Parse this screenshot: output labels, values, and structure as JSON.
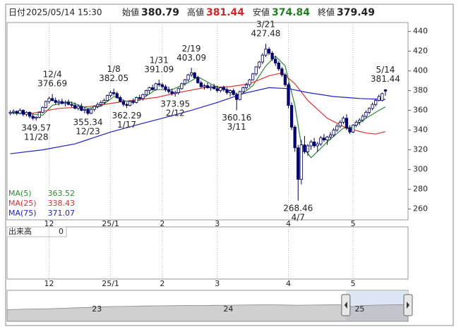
{
  "header": {
    "date_label": "日付",
    "date": "2025/05/14 15:30",
    "open_label": "始値",
    "open": 380.79,
    "high_label": "高値",
    "high": 381.44,
    "low_label": "安値",
    "low": 374.84,
    "close_label": "終値",
    "close": 379.49
  },
  "chart_data": {
    "type": "candlestick",
    "up_color": "#ffffff",
    "down_color": "#000080",
    "grid": true,
    "xlim": [
      -1,
      123
    ],
    "ylim": [
      249,
      449
    ],
    "yticks": [
      260,
      280,
      300,
      320,
      340,
      360,
      380,
      400,
      420,
      440
    ],
    "xticks": [
      {
        "value": 12,
        "label": "12"
      },
      {
        "value": 31,
        "label": "25/1"
      },
      {
        "value": 47,
        "label": "2"
      },
      {
        "value": 64,
        "label": "3"
      },
      {
        "value": 86,
        "label": "4"
      },
      {
        "value": 106,
        "label": "5"
      }
    ],
    "candles": [
      [
        357,
        360,
        355,
        358
      ],
      [
        358,
        361,
        356,
        359
      ],
      [
        359,
        360,
        355,
        357
      ],
      [
        357,
        362,
        356,
        360
      ],
      [
        360,
        361,
        354,
        356
      ],
      [
        356,
        359,
        354,
        358
      ],
      [
        358,
        359,
        352,
        354
      ],
      [
        354,
        356,
        350,
        352
      ],
      [
        352,
        354,
        349.57,
        353
      ],
      [
        353,
        359,
        352,
        358
      ],
      [
        358,
        364,
        357,
        363
      ],
      [
        363,
        370,
        362,
        369
      ],
      [
        369,
        374,
        367,
        372
      ],
      [
        372,
        376.69,
        369,
        370
      ],
      [
        370,
        373,
        366,
        368
      ],
      [
        368,
        371,
        365,
        369
      ],
      [
        369,
        372,
        366,
        367
      ],
      [
        367,
        370,
        364,
        368
      ],
      [
        368,
        371,
        365,
        366
      ],
      [
        366,
        369,
        363,
        365
      ],
      [
        365,
        368,
        361,
        362
      ],
      [
        362,
        366,
        360,
        364
      ],
      [
        364,
        367,
        359,
        360
      ],
      [
        360,
        363,
        357,
        361
      ],
      [
        361,
        362,
        355.34,
        357
      ],
      [
        357,
        362,
        356,
        361
      ],
      [
        361,
        365,
        359,
        364
      ],
      [
        364,
        368,
        362,
        366
      ],
      [
        366,
        370,
        364,
        368
      ],
      [
        368,
        372,
        366,
        370
      ],
      [
        370,
        376,
        369,
        375
      ],
      [
        375,
        380,
        373,
        378
      ],
      [
        378,
        382.05,
        375,
        377
      ],
      [
        377,
        379,
        372,
        373
      ],
      [
        373,
        375,
        368,
        369
      ],
      [
        369,
        371,
        364,
        366
      ],
      [
        366,
        368,
        362.29,
        365
      ],
      [
        365,
        370,
        364,
        369
      ],
      [
        369,
        372,
        366,
        368
      ],
      [
        368,
        374,
        367,
        373
      ],
      [
        373,
        376,
        371,
        372
      ],
      [
        372,
        377,
        370,
        376
      ],
      [
        376,
        381,
        374,
        380
      ],
      [
        380,
        384,
        377,
        383
      ],
      [
        383,
        386,
        380,
        381
      ],
      [
        381,
        388,
        380,
        387
      ],
      [
        387,
        391.09,
        384,
        386
      ],
      [
        386,
        388,
        382,
        384
      ],
      [
        384,
        386,
        379,
        381
      ],
      [
        381,
        384,
        377,
        379
      ],
      [
        379,
        382,
        375,
        377
      ],
      [
        377,
        380,
        373.95,
        378
      ],
      [
        378,
        383,
        376,
        382
      ],
      [
        382,
        388,
        381,
        387
      ],
      [
        387,
        392,
        385,
        391
      ],
      [
        391,
        397,
        389,
        396
      ],
      [
        396,
        403.09,
        394,
        398
      ],
      [
        398,
        399,
        392,
        393
      ],
      [
        393,
        395,
        387,
        388
      ],
      [
        388,
        390,
        383,
        384
      ],
      [
        384,
        387,
        381,
        385
      ],
      [
        385,
        388,
        382,
        383
      ],
      [
        383,
        386,
        380,
        384
      ],
      [
        384,
        387,
        381,
        382
      ],
      [
        382,
        385,
        378,
        380
      ],
      [
        380,
        384,
        378,
        383
      ],
      [
        383,
        385,
        379,
        381
      ],
      [
        381,
        383,
        376,
        378
      ],
      [
        378,
        381,
        374,
        380
      ],
      [
        380,
        382,
        375,
        376
      ],
      [
        376,
        378,
        360.16,
        371
      ],
      [
        371,
        380,
        370,
        379
      ],
      [
        379,
        384,
        377,
        383
      ],
      [
        383,
        388,
        381,
        386
      ],
      [
        386,
        392,
        384,
        391
      ],
      [
        391,
        398,
        390,
        397
      ],
      [
        397,
        405,
        395,
        404
      ],
      [
        404,
        410,
        402,
        409
      ],
      [
        409,
        418,
        407,
        416
      ],
      [
        416,
        427.48,
        414,
        422
      ],
      [
        422,
        424,
        416,
        418
      ],
      [
        418,
        420,
        410,
        412
      ],
      [
        412,
        415,
        405,
        408
      ],
      [
        408,
        410,
        400,
        402
      ],
      [
        402,
        404,
        394,
        396
      ],
      [
        396,
        398,
        384,
        386
      ],
      [
        386,
        388,
        362,
        365
      ],
      [
        365,
        368,
        340,
        343
      ],
      [
        343,
        345,
        318,
        322
      ],
      [
        322,
        325,
        268.46,
        290
      ],
      [
        290,
        330,
        285,
        325
      ],
      [
        325,
        334,
        316,
        318
      ],
      [
        318,
        326,
        314,
        324
      ],
      [
        324,
        330,
        320,
        328
      ],
      [
        328,
        332,
        322,
        324
      ],
      [
        324,
        328,
        318,
        326
      ],
      [
        326,
        334,
        324,
        332
      ],
      [
        332,
        336,
        328,
        330
      ],
      [
        330,
        334,
        325,
        333
      ],
      [
        333,
        338,
        330,
        335
      ],
      [
        335,
        342,
        333,
        340
      ],
      [
        340,
        346,
        338,
        344
      ],
      [
        344,
        350,
        342,
        348
      ],
      [
        348,
        354,
        346,
        352
      ],
      [
        352,
        356,
        340,
        342
      ],
      [
        342,
        345,
        336,
        338
      ],
      [
        338,
        346,
        337,
        345
      ],
      [
        345,
        350,
        343,
        348
      ],
      [
        348,
        352,
        345,
        350
      ],
      [
        350,
        356,
        348,
        354
      ],
      [
        354,
        360,
        352,
        358
      ],
      [
        358,
        363,
        356,
        362
      ],
      [
        362,
        368,
        360,
        366
      ],
      [
        366,
        372,
        364,
        370
      ],
      [
        370,
        376,
        369,
        374
      ],
      [
        370,
        378,
        369,
        377
      ],
      [
        380.79,
        381.44,
        374.84,
        379.49
      ]
    ],
    "ma": [
      {
        "name": "MA(5)",
        "color": "#2e8b2e",
        "x": [
          0,
          5,
          10,
          13,
          18,
          24,
          28,
          32,
          36,
          40,
          45,
          50,
          55,
          58,
          63,
          68,
          71,
          75,
          79,
          82,
          85,
          88,
          90,
          93,
          98,
          103,
          106,
          110,
          114,
          116
        ],
        "values": [
          357,
          357,
          355,
          365,
          369,
          362,
          364,
          374,
          369,
          370,
          381,
          381,
          388,
          394,
          385,
          380,
          375,
          385,
          405,
          415,
          405,
          365,
          325,
          312,
          328,
          342,
          343,
          352,
          360,
          363.52
        ]
      },
      {
        "name": "MA(25)",
        "color": "#e03030",
        "x": [
          5,
          15,
          25,
          35,
          45,
          52,
          60,
          68,
          74,
          80,
          84,
          88,
          92,
          98,
          104,
          110,
          113,
          116
        ],
        "values": [
          356,
          362,
          364,
          369,
          373,
          378,
          383,
          384,
          387,
          395,
          398,
          387,
          370,
          352,
          342,
          337,
          336,
          338.43
        ]
      },
      {
        "name": "MA(75)",
        "color": "#2020d0",
        "x": [
          0,
          10,
          20,
          31,
          40,
          47,
          56,
          64,
          72,
          80,
          86,
          92,
          100,
          108,
          116
        ],
        "values": [
          316,
          320,
          326,
          338,
          346,
          352,
          360,
          368,
          377,
          383,
          382,
          378,
          374,
          372,
          371.07
        ]
      }
    ],
    "annotations": [
      {
        "date": "11/28",
        "value": 349.57,
        "x": 8,
        "pos": "below"
      },
      {
        "date": "12/4",
        "value": 376.69,
        "x": 13,
        "pos": "above"
      },
      {
        "date": "12/23",
        "value": 355.34,
        "x": 24,
        "pos": "below"
      },
      {
        "date": "1/8",
        "value": 382.05,
        "x": 32,
        "pos": "above"
      },
      {
        "date": "1/17",
        "value": 362.29,
        "x": 36,
        "pos": "below"
      },
      {
        "date": "1/31",
        "value": 391.09,
        "x": 46,
        "pos": "above"
      },
      {
        "date": "2/12",
        "value": 373.95,
        "x": 51,
        "pos": "below"
      },
      {
        "date": "2/19",
        "value": 403.09,
        "x": 56,
        "pos": "above"
      },
      {
        "date": "3/11",
        "value": 360.16,
        "x": 70,
        "pos": "below"
      },
      {
        "date": "3/21",
        "value": 427.48,
        "x": 79,
        "pos": "above"
      },
      {
        "date": "4/7",
        "value": 268.46,
        "x": 89,
        "pos": "below"
      },
      {
        "date": "5/14",
        "value": 381.44,
        "x": 116,
        "pos": "above"
      }
    ],
    "volume": {
      "label": "出来高",
      "value": 0
    },
    "navigator": {
      "xlim": [
        0,
        29
      ],
      "ylim": [
        0,
        400
      ],
      "color": "#b0b0b0",
      "values": [
        150,
        155,
        160,
        162,
        168,
        175,
        180,
        188,
        192,
        195,
        198,
        200,
        202,
        205,
        203,
        206,
        208,
        210,
        212,
        214,
        211,
        208,
        210,
        212,
        215,
        190,
        205,
        210,
        214,
        215
      ],
      "xticks": [
        {
          "value": 6.5,
          "label": "23"
        },
        {
          "value": 16,
          "label": "24"
        },
        {
          "value": 25.5,
          "label": "25"
        }
      ],
      "window": [
        24.5,
        29
      ]
    }
  }
}
